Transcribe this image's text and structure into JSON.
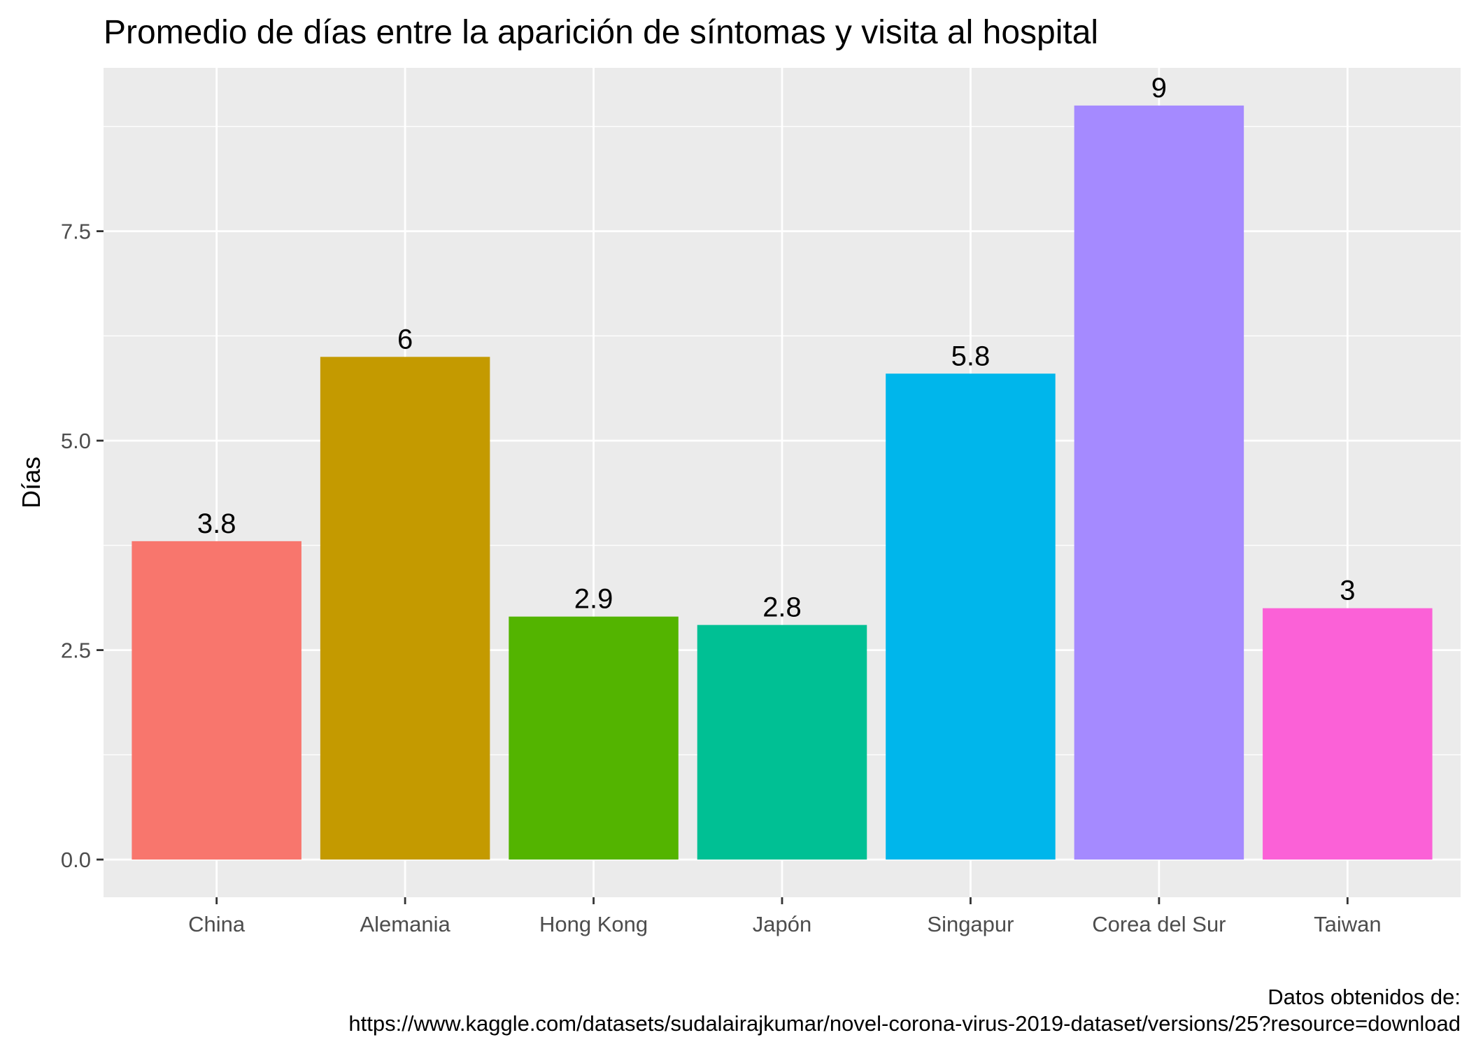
{
  "chart_data": {
    "type": "bar",
    "title": "Promedio de días entre la aparición de síntomas y visita al hospital",
    "xlabel": "",
    "ylabel": "Días",
    "categories": [
      "China",
      "Alemania",
      "Hong Kong",
      "Japón",
      "Singapur",
      "Corea del Sur",
      "Taiwan"
    ],
    "values": [
      3.8,
      6,
      2.9,
      2.8,
      5.8,
      9,
      3
    ],
    "value_labels": [
      "3.8",
      "6",
      "2.9",
      "2.8",
      "5.8",
      "9",
      "3"
    ],
    "colors": [
      "#F8766D",
      "#C49A00",
      "#53B400",
      "#00C094",
      "#00B6EB",
      "#A58AFF",
      "#FB61D7"
    ],
    "yticks": [
      0,
      2.5,
      5,
      7.5
    ],
    "ytick_labels": [
      "0.0",
      "2.5",
      "5.0",
      "7.5"
    ],
    "ylim": [
      -0.45,
      9.45
    ],
    "grid": true,
    "legend": "none",
    "panel_background": "#EBEBEB",
    "caption_lines": [
      "Datos obtenidos de:",
      "https://www.kaggle.com/datasets/sudalairajkumar/novel-corona-virus-2019-dataset/versions/25?resource=download"
    ]
  }
}
